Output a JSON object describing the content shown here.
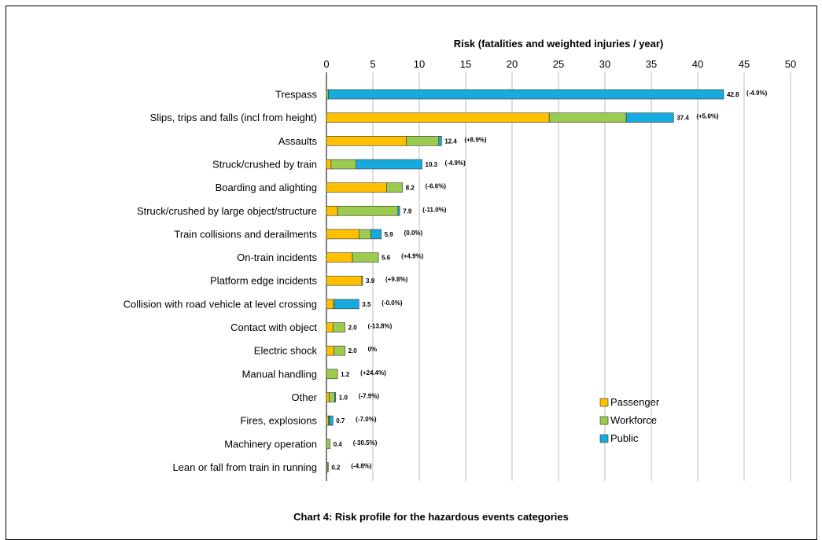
{
  "chart_data": {
    "type": "bar",
    "orientation": "horizontal",
    "stacked": true,
    "title": "Chart 4: Risk profile for the hazardous events categories",
    "xlabel": "Risk (fatalities and weighted injuries / year)",
    "xlim": [
      0,
      50
    ],
    "xticks": [
      "0",
      "5",
      "10",
      "15",
      "20",
      "25",
      "30",
      "35",
      "40",
      "45",
      "50"
    ],
    "grid": true,
    "legend_position": "bottom-right",
    "categories": [
      "Trespass",
      "Slips, trips and falls (incl from height)",
      "Assaults",
      "Struck/crushed by train",
      "Boarding and alighting",
      "Struck/crushed by large object/structure",
      "Train collisions and derailments",
      "On-train incidents",
      "Platform edge incidents",
      "Collision with road vehicle at level crossing",
      "Contact with object",
      "Electric shock",
      "Manual handling",
      "Other",
      "Fires, explosions",
      "Machinery operation",
      "Lean or fall from train in running"
    ],
    "series": [
      {
        "name": "Passenger",
        "color": "#FFC000",
        "values": [
          0,
          24.0,
          8.6,
          0.5,
          6.5,
          1.2,
          3.5,
          2.8,
          3.8,
          0.7,
          0.7,
          0.8,
          0,
          0.3,
          0.2,
          0,
          0.1
        ]
      },
      {
        "name": "Workforce",
        "color": "#9BCB4F",
        "values": [
          0.2,
          8.3,
          3.5,
          2.7,
          1.7,
          6.5,
          1.3,
          2.8,
          0.1,
          0.2,
          1.3,
          1.2,
          1.2,
          0.6,
          0.1,
          0.4,
          0.1
        ]
      },
      {
        "name": "Public",
        "color": "#17AADF",
        "values": [
          42.6,
          5.1,
          0.3,
          7.1,
          0,
          0.2,
          1.1,
          0,
          0,
          2.6,
          0,
          0,
          0,
          0.1,
          0.4,
          0,
          0
        ]
      }
    ],
    "totals": [
      "42.8",
      "37.4",
      "12.4",
      "10.3",
      "8.2",
      "7.9",
      "5.9",
      "5.6",
      "3.9",
      "3.5",
      "2.0",
      "2.0",
      "1.2",
      "1.0",
      "0.7",
      "0.4",
      "0.2"
    ],
    "changes": [
      "(-4.9%)",
      "(+5.6%)",
      "(+8.9%)",
      "(-4.9%)",
      "(-6.6%)",
      "(-11.0%)",
      "(0.0%)",
      "(+4.9%)",
      "(+9.8%)",
      "(-0.0%)",
      "(-13.8%)",
      "0%",
      "(+24.4%)",
      "(-7.9%)",
      "(-7.0%)",
      "(-30.5%)",
      "(-4.8%)"
    ]
  }
}
